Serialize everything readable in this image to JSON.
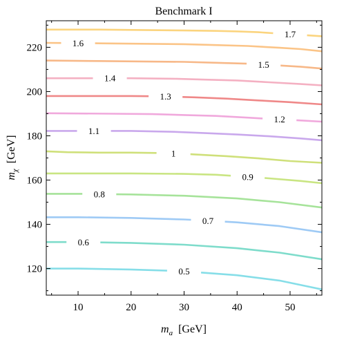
{
  "chart_data": {
    "type": "contour",
    "title": "Benchmark I",
    "xlabel": {
      "main": "m",
      "sub": "a",
      "unit": "[GeV]"
    },
    "ylabel": {
      "main": "m",
      "sub": "χ",
      "unit": "[GeV]"
    },
    "xlim": [
      4,
      56
    ],
    "ylim": [
      108,
      232
    ],
    "x_ticks": [
      10,
      20,
      30,
      40,
      50
    ],
    "y_ticks": [
      120,
      140,
      160,
      180,
      200,
      220
    ],
    "grid": false,
    "contours": [
      {
        "level": "0.5",
        "color": "#86dee8",
        "label_x": 30,
        "points": [
          [
            4,
            120
          ],
          [
            10,
            120
          ],
          [
            20,
            119.6
          ],
          [
            30,
            118.8
          ],
          [
            40,
            117
          ],
          [
            48,
            114.6
          ],
          [
            56,
            110.6
          ]
        ]
      },
      {
        "level": "0.6",
        "color": "#7edccb",
        "label_x": 11,
        "points": [
          [
            4,
            132
          ],
          [
            10,
            132
          ],
          [
            20,
            131.6
          ],
          [
            30,
            130.8
          ],
          [
            40,
            129.2
          ],
          [
            48,
            127.2
          ],
          [
            56,
            124.2
          ]
        ]
      },
      {
        "level": "0.7",
        "color": "#9ecaf5",
        "label_x": 34.5,
        "points": [
          [
            4,
            143.2
          ],
          [
            10,
            143.2
          ],
          [
            20,
            142.9
          ],
          [
            30,
            142.2
          ],
          [
            40,
            140.9
          ],
          [
            48,
            139.2
          ],
          [
            56,
            136.4
          ]
        ]
      },
      {
        "level": "0.8",
        "color": "#a6e39a",
        "label_x": 14,
        "points": [
          [
            4,
            153.8
          ],
          [
            10,
            153.8
          ],
          [
            20,
            153.5
          ],
          [
            30,
            152.9
          ],
          [
            40,
            151.7
          ],
          [
            48,
            150
          ],
          [
            56,
            147.6
          ]
        ]
      },
      {
        "level": "0.9",
        "color": "#c9e582",
        "label_x": 42,
        "points": [
          [
            4,
            163
          ],
          [
            10,
            163
          ],
          [
            20,
            163
          ],
          [
            30,
            162.8
          ],
          [
            36,
            162.4
          ],
          [
            40,
            161.8
          ],
          [
            46,
            160.8
          ],
          [
            52,
            159.6
          ],
          [
            56,
            158.6
          ]
        ]
      },
      {
        "level": "1",
        "color": "#cfe07a",
        "label_x": 28,
        "points": [
          [
            4,
            173
          ],
          [
            8,
            172.6
          ],
          [
            14,
            172.4
          ],
          [
            20,
            172.4
          ],
          [
            26,
            172.2
          ],
          [
            32,
            171.6
          ],
          [
            38,
            170.8
          ],
          [
            44,
            169.8
          ],
          [
            50,
            168.6
          ],
          [
            56,
            167.8
          ]
        ]
      },
      {
        "level": "1.1",
        "color": "#c9a8ec",
        "label_x": 13,
        "points": [
          [
            4,
            182.2
          ],
          [
            20,
            182.2
          ],
          [
            28,
            181.8
          ],
          [
            34,
            181.2
          ],
          [
            40,
            180.6
          ],
          [
            46,
            179.8
          ],
          [
            52,
            178.8
          ],
          [
            56,
            178
          ]
        ]
      },
      {
        "level": "1.2",
        "color": "#f0a8dc",
        "label_x": 48,
        "points": [
          [
            4,
            190.2
          ],
          [
            16,
            190
          ],
          [
            24,
            189.8
          ],
          [
            30,
            189.4
          ],
          [
            36,
            189
          ],
          [
            42,
            188.2
          ],
          [
            50,
            187.2
          ],
          [
            56,
            186.4
          ]
        ]
      },
      {
        "level": "1.3",
        "color": "#ef8888",
        "label_x": 26.5,
        "points": [
          [
            4,
            198
          ],
          [
            12,
            198
          ],
          [
            20,
            198
          ],
          [
            26,
            197.8
          ],
          [
            32,
            197.4
          ],
          [
            38,
            196.8
          ],
          [
            44,
            196
          ],
          [
            50,
            195.2
          ],
          [
            56,
            194.2
          ]
        ]
      },
      {
        "level": "1.4",
        "color": "#f4b0c2",
        "label_x": 16,
        "points": [
          [
            4,
            206
          ],
          [
            12,
            206
          ],
          [
            20,
            206
          ],
          [
            28,
            205.8
          ],
          [
            34,
            205.4
          ],
          [
            40,
            205
          ],
          [
            46,
            204.2
          ],
          [
            52,
            203.4
          ],
          [
            56,
            202.8
          ]
        ]
      },
      {
        "level": "1.5",
        "color": "#f7b888",
        "label_x": 45,
        "points": [
          [
            4,
            214
          ],
          [
            14,
            213.8
          ],
          [
            22,
            213.6
          ],
          [
            30,
            213.4
          ],
          [
            36,
            213
          ],
          [
            42,
            212.6
          ],
          [
            48,
            211.8
          ],
          [
            52,
            211.2
          ],
          [
            56,
            210.4
          ]
        ]
      },
      {
        "level": "1.6",
        "color": "#fbc487",
        "label_x": 10,
        "points": [
          [
            4,
            222
          ],
          [
            14,
            221.8
          ],
          [
            22,
            221.6
          ],
          [
            30,
            221.4
          ],
          [
            36,
            221
          ],
          [
            42,
            220.6
          ],
          [
            48,
            219.8
          ],
          [
            52,
            219.2
          ],
          [
            56,
            218.2
          ]
        ]
      },
      {
        "level": "1.7",
        "color": "#fbd47e",
        "label_x": 50,
        "points": [
          [
            4,
            228
          ],
          [
            14,
            228
          ],
          [
            22,
            227.8
          ],
          [
            30,
            227.6
          ],
          [
            36,
            227.4
          ],
          [
            40,
            227.2
          ],
          [
            44,
            226.8
          ],
          [
            48,
            226.2
          ],
          [
            52,
            225.6
          ],
          [
            56,
            225
          ]
        ]
      }
    ]
  }
}
